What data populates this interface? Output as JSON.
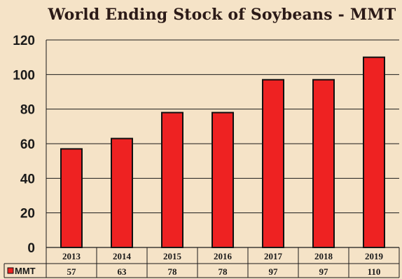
{
  "chart_data": {
    "type": "bar",
    "title": "World Ending Stock of Soybeans - MMT",
    "categories": [
      "2013",
      "2014",
      "2015",
      "2016",
      "2017",
      "2018",
      "2019"
    ],
    "series": [
      {
        "name": "MMT",
        "values": [
          57,
          63,
          78,
          78,
          97,
          97,
          110
        ],
        "color": "#ee2222"
      }
    ],
    "ylim": [
      0,
      120
    ],
    "yticks": [
      "0",
      "20",
      "40",
      "60",
      "80",
      "100",
      "120"
    ],
    "grid": true,
    "data_table": true,
    "background": "#f5e3c7"
  }
}
